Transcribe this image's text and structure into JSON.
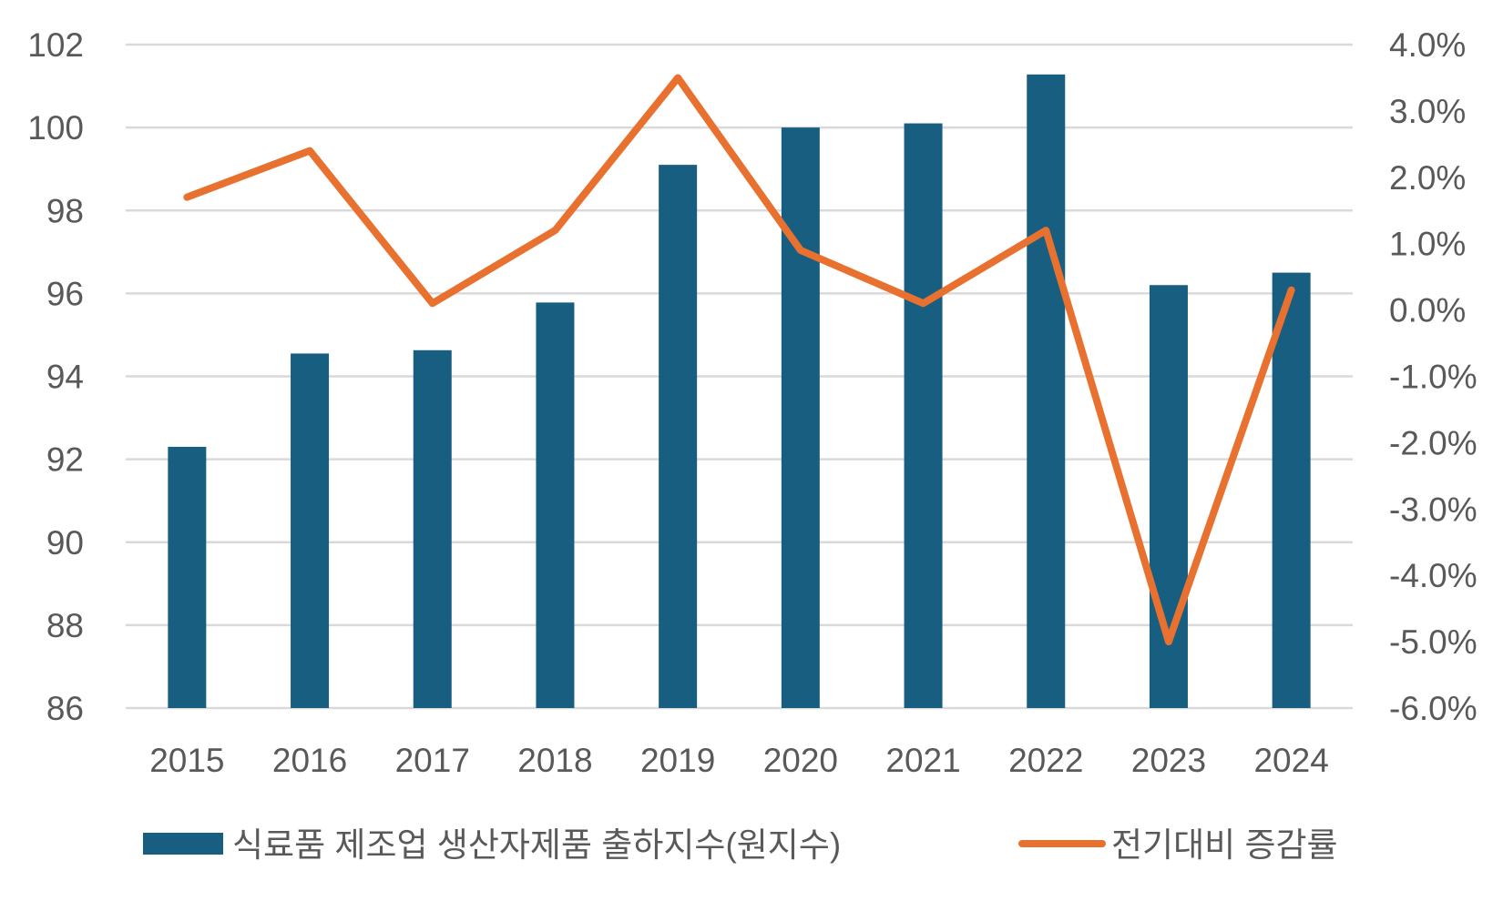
{
  "chart_data": {
    "type": "bar+line",
    "categories": [
      "2015",
      "2016",
      "2017",
      "2018",
      "2019",
      "2020",
      "2021",
      "2022",
      "2023",
      "2024"
    ],
    "series": [
      {
        "name": "식료품 제조업 생산자제품 출하지수(원지수)",
        "type": "bar",
        "axis": "left",
        "color": "#175E80",
        "values": [
          92.3,
          94.55,
          94.63,
          95.78,
          99.1,
          100.0,
          100.1,
          101.28,
          96.2,
          96.5
        ]
      },
      {
        "name": "전기대비 증감률",
        "type": "line",
        "axis": "right",
        "color": "#E8712F",
        "values": [
          1.7,
          2.4,
          0.1,
          1.2,
          3.5,
          0.9,
          0.1,
          1.2,
          -5.0,
          0.3
        ]
      }
    ],
    "left_axis": {
      "ylim": [
        86,
        102
      ],
      "ticks": [
        "86",
        "88",
        "90",
        "92",
        "94",
        "96",
        "98",
        "100",
        "102"
      ]
    },
    "right_axis": {
      "ylim": [
        -6.0,
        4.0
      ],
      "ticks": [
        "-6.0%",
        "-5.0%",
        "-4.0%",
        "-3.0%",
        "-2.0%",
        "-1.0%",
        "0.0%",
        "1.0%",
        "2.0%",
        "3.0%",
        "4.0%"
      ]
    },
    "grid": true,
    "legend": "bottom",
    "colors": {
      "text": "#595959",
      "grid": "#D9D9D9"
    }
  }
}
